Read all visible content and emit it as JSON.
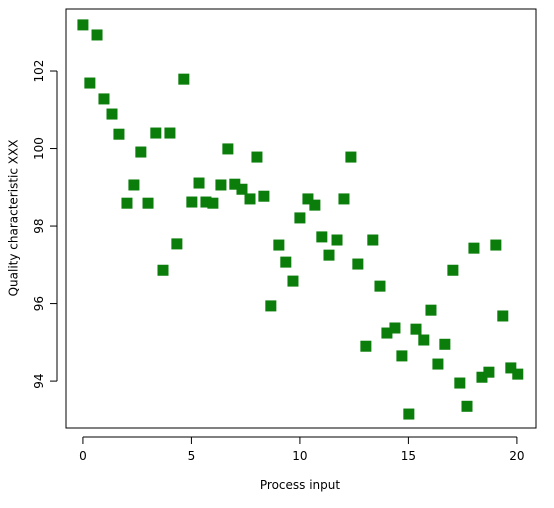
{
  "chart_data": {
    "type": "scatter",
    "x_label": "Process input",
    "y_label": "Quality characteristic XXX",
    "color": "#0a7d0a",
    "xlim": [
      -0.78,
      20.88
    ],
    "ylim": [
      92.79,
      103.6
    ],
    "xticks": [
      0,
      5,
      10,
      15,
      20
    ],
    "yticks": [
      94,
      96,
      98,
      100,
      102
    ],
    "x": [
      0,
      0.32,
      0.65,
      0.97,
      1.34,
      1.66,
      2.03,
      2.35,
      2.67,
      3.0,
      3.36,
      3.69,
      4.01,
      4.33,
      4.65,
      5.02,
      5.35,
      5.67,
      5.99,
      6.36,
      6.68,
      7.0,
      7.33,
      7.7,
      8.02,
      8.34,
      8.66,
      9.03,
      9.35,
      9.68,
      10.0,
      10.37,
      10.69,
      11.01,
      11.34,
      11.71,
      12.03,
      12.35,
      12.67,
      13.04,
      13.36,
      13.69,
      14.01,
      14.38,
      14.7,
      15.02,
      15.35,
      15.71,
      16.04,
      16.36,
      16.68,
      17.05,
      17.37,
      17.7,
      18.02,
      18.39,
      18.71,
      19.03,
      19.35,
      19.72,
      20.04
    ],
    "values": [
      103.19,
      101.69,
      102.93,
      101.28,
      100.89,
      100.37,
      98.59,
      99.06,
      99.91,
      98.59,
      100.4,
      96.86,
      100.4,
      97.54,
      101.79,
      98.62,
      99.11,
      98.62,
      98.59,
      99.06,
      99.99,
      99.08,
      98.95,
      98.7,
      99.78,
      98.77,
      95.94,
      97.51,
      97.07,
      96.58,
      98.21,
      98.7,
      98.54,
      97.72,
      97.25,
      97.64,
      98.7,
      99.78,
      97.02,
      94.9,
      97.64,
      96.45,
      95.24,
      95.37,
      94.65,
      93.15,
      95.34,
      95.06,
      95.83,
      94.44,
      94.95,
      96.86,
      93.95,
      93.35,
      97.43,
      94.1,
      94.23,
      97.51,
      95.68,
      94.34,
      94.18
    ]
  }
}
